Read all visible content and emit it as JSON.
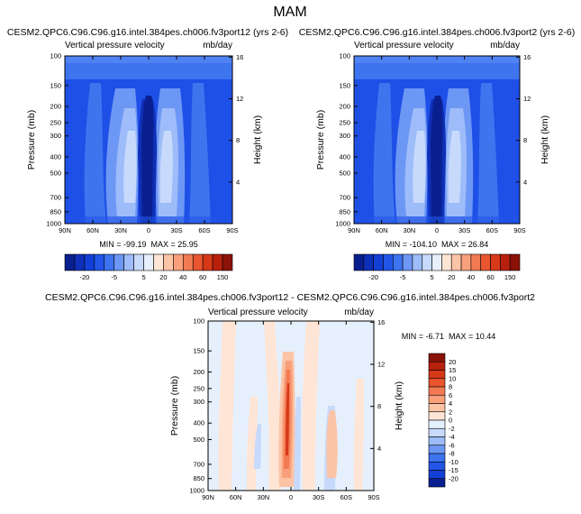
{
  "page": {
    "title": "MAM"
  },
  "chart_data": [
    {
      "id": "p1",
      "type": "heatmap",
      "title": "CESM2.QPC6.C96.C96.g16.intel.384pes.ch006.fv3port12 (yrs 2-6)",
      "left_subtitle": "Vertical pressure velocity",
      "right_subtitle": "mb/day",
      "ylabel": "Pressure (mb)",
      "ylabel_right": "Height (km)",
      "x_ticks": [
        "90N",
        "60N",
        "30N",
        "0",
        "30S",
        "60S",
        "90S"
      ],
      "y_ticks": [
        "100",
        "150",
        "200",
        "250",
        "300",
        "400",
        "500",
        "700",
        "850",
        "1000"
      ],
      "y_ticks_right": [
        "16",
        "12",
        "8",
        "4"
      ],
      "xlim": [
        90,
        -90
      ],
      "ylim": [
        100,
        1000
      ],
      "stats": "MIN = -99.19  MAX = 25.95",
      "min": -99.19,
      "max": 25.95,
      "levels": [
        "-20",
        "-5",
        "5",
        "20",
        "40",
        "60",
        "150"
      ],
      "colors": [
        "#0a1f8f",
        "#0e2fb7",
        "#1240d6",
        "#2255e8",
        "#3d73f0",
        "#6d97f5",
        "#9dbcf9",
        "#c7dafc",
        "#e8f0fe",
        "#ffe5d6",
        "#fcc4a6",
        "#f9a07a",
        "#f27a52",
        "#e8552f",
        "#d63818",
        "#b8200e",
        "#8b1207"
      ]
    },
    {
      "id": "p2",
      "type": "heatmap",
      "title": "CESM2.QPC6.C96.C96.g16.intel.384pes.ch006.fv3port2 (yrs 2-6)",
      "left_subtitle": "Vertical pressure velocity",
      "right_subtitle": "mb/day",
      "ylabel": "Pressure (mb)",
      "ylabel_right": "Height (km)",
      "x_ticks": [
        "90N",
        "60N",
        "30N",
        "0",
        "30S",
        "60S",
        "90S"
      ],
      "y_ticks": [
        "100",
        "150",
        "200",
        "250",
        "300",
        "400",
        "500",
        "700",
        "850",
        "1000"
      ],
      "y_ticks_right": [
        "16",
        "12",
        "8",
        "4"
      ],
      "xlim": [
        90,
        -90
      ],
      "ylim": [
        100,
        1000
      ],
      "stats": "MIN = -104.10  MAX = 26.84",
      "min": -104.1,
      "max": 26.84,
      "levels": [
        "-20",
        "-5",
        "5",
        "20",
        "40",
        "60",
        "150"
      ],
      "colors": [
        "#0a1f8f",
        "#0e2fb7",
        "#1240d6",
        "#2255e8",
        "#3d73f0",
        "#6d97f5",
        "#9dbcf9",
        "#c7dafc",
        "#e8f0fe",
        "#ffe5d6",
        "#fcc4a6",
        "#f9a07a",
        "#f27a52",
        "#e8552f",
        "#d63818",
        "#b8200e",
        "#8b1207"
      ]
    },
    {
      "id": "p3",
      "type": "heatmap",
      "title": "CESM2.QPC6.C96.C96.g16.intel.384pes.ch006.fv3port12 - CESM2.QPC6.C96.C96.g16.intel.384pes.ch006.fv3port2",
      "left_subtitle": "Vertical pressure velocity",
      "right_subtitle": "mb/day",
      "ylabel": "Pressure (mb)",
      "ylabel_right": "Height (km)",
      "x_ticks": [
        "90N",
        "60N",
        "30N",
        "0",
        "30S",
        "60S",
        "90S"
      ],
      "y_ticks": [
        "100",
        "150",
        "200",
        "250",
        "300",
        "400",
        "500",
        "700",
        "850",
        "1000"
      ],
      "y_ticks_right": [
        "16",
        "12",
        "8",
        "4"
      ],
      "xlim": [
        90,
        -90
      ],
      "ylim": [
        100,
        1000
      ],
      "stats": "MIN = -6.71  MAX = 10.44",
      "min": -6.71,
      "max": 10.44,
      "levels": [
        "20",
        "15",
        "10",
        "8",
        "6",
        "4",
        "2",
        "0",
        "-2",
        "-4",
        "-6",
        "-8",
        "-10",
        "-15",
        "-20"
      ],
      "colors": [
        "#8b1207",
        "#b8200e",
        "#d63818",
        "#e8552f",
        "#f27a52",
        "#f9a07a",
        "#fcc4a6",
        "#ffe5d6",
        "#e6f0fd",
        "#c7dafc",
        "#9dbcf9",
        "#6d97f5",
        "#3d73f0",
        "#2255e8",
        "#1240d6",
        "#0a1f8f"
      ]
    }
  ]
}
